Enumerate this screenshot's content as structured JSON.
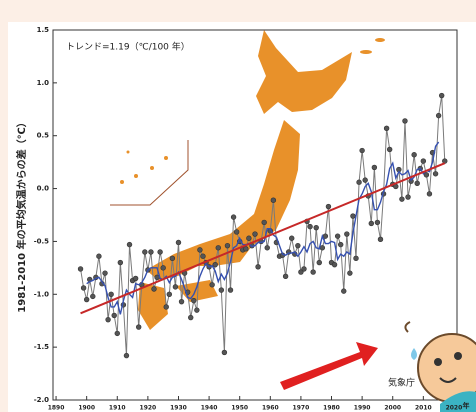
{
  "chart_data": {
    "type": "line",
    "y_label": "1981-2010 年の平均気温からの差（℃）",
    "annotation": "トレンド=1.19（℃/100 年）",
    "source": "気象庁",
    "x_unit": "年",
    "x": [
      1898,
      1899,
      1900,
      1901,
      1902,
      1903,
      1904,
      1905,
      1906,
      1907,
      1908,
      1909,
      1910,
      1911,
      1912,
      1913,
      1914,
      1915,
      1916,
      1917,
      1918,
      1919,
      1920,
      1921,
      1922,
      1923,
      1924,
      1925,
      1926,
      1927,
      1928,
      1929,
      1930,
      1931,
      1932,
      1933,
      1934,
      1935,
      1936,
      1937,
      1938,
      1939,
      1940,
      1941,
      1942,
      1943,
      1944,
      1945,
      1946,
      1947,
      1948,
      1949,
      1950,
      1951,
      1952,
      1953,
      1954,
      1955,
      1956,
      1957,
      1958,
      1959,
      1960,
      1961,
      1962,
      1963,
      1964,
      1965,
      1966,
      1967,
      1968,
      1969,
      1970,
      1971,
      1972,
      1973,
      1974,
      1975,
      1976,
      1977,
      1978,
      1979,
      1980,
      1981,
      1982,
      1983,
      1984,
      1985,
      1986,
      1987,
      1988,
      1989,
      1990,
      1991,
      1992,
      1993,
      1994,
      1995,
      1996,
      1997,
      1998,
      1999,
      2000,
      2001,
      2002,
      2003,
      2004,
      2005,
      2006,
      2007,
      2008,
      2009,
      2010,
      2011,
      2012,
      2013,
      2014,
      2015,
      2016,
      2017
    ],
    "series": [
      {
        "color": "#7a7a7a",
        "markers": true,
        "values": [
          -0.76,
          -0.94,
          -1.05,
          -0.86,
          -1.02,
          -0.84,
          -0.64,
          -0.9,
          -0.8,
          -1.24,
          -1.0,
          -1.2,
          -1.37,
          -0.7,
          -1.1,
          -1.58,
          -0.53,
          -0.87,
          -0.85,
          -1.31,
          -0.91,
          -0.6,
          -0.77,
          -0.6,
          -0.95,
          -0.84,
          -0.6,
          -0.75,
          -1.12,
          -1.0,
          -0.66,
          -0.93,
          -0.51,
          -1.07,
          -0.8,
          -0.98,
          -1.22,
          -1.06,
          -1.15,
          -0.58,
          -0.64,
          -0.7,
          -0.74,
          -0.91,
          -0.72,
          -0.56,
          -0.96,
          -1.55,
          -0.54,
          -0.96,
          -0.27,
          -0.41,
          -0.5,
          -0.58,
          -0.57,
          -0.47,
          -0.54,
          -0.43,
          -0.74,
          -0.5,
          -0.32,
          -0.56,
          -0.4,
          -0.11,
          -0.51,
          -0.64,
          -0.63,
          -0.83,
          -0.6,
          -0.47,
          -0.62,
          -0.54,
          -0.79,
          -0.76,
          -0.31,
          -0.36,
          -0.79,
          -0.37,
          -0.7,
          -0.56,
          -0.45,
          -0.17,
          -0.7,
          -0.72,
          -0.45,
          -0.53,
          -0.97,
          -0.43,
          -0.8,
          -0.26,
          -0.66,
          0.06,
          0.36,
          0.08,
          -0.07,
          -0.33,
          0.2,
          -0.32,
          -0.48,
          -0.05,
          0.57,
          0.37,
          0.04,
          0.02,
          0.18,
          -0.1,
          0.64,
          -0.08,
          0.07,
          0.32,
          0.05,
          0.19,
          0.26,
          0.13,
          -0.05,
          0.34,
          0.14,
          0.69,
          0.88,
          0.26
        ]
      },
      {
        "color": "#3550b0",
        "markers": false,
        "values": [
          null,
          null,
          -0.9,
          -0.88,
          -0.87,
          -0.85,
          -0.84,
          -0.88,
          -0.92,
          -1.03,
          -1.12,
          -1.12,
          -1.07,
          -1.19,
          -1.06,
          -0.96,
          -1.0,
          -1.03,
          -0.9,
          -0.91,
          -0.89,
          -0.84,
          -0.77,
          -0.75,
          -0.75,
          -0.75,
          -0.85,
          -0.86,
          -0.83,
          -0.89,
          -0.84,
          -0.83,
          -0.79,
          -0.86,
          -0.94,
          -1.03,
          -1.04,
          -1.0,
          -0.93,
          -0.83,
          -0.76,
          -0.71,
          -0.74,
          -0.73,
          -0.78,
          -0.88,
          -0.81,
          -0.86,
          -0.8,
          -0.69,
          -0.56,
          -0.54,
          -0.47,
          -0.53,
          -0.53,
          -0.52,
          -0.55,
          -0.54,
          -0.51,
          -0.51,
          -0.5,
          -0.38,
          -0.38,
          -0.44,
          -0.46,
          -0.54,
          -0.62,
          -0.63,
          -0.61,
          -0.61,
          -0.6,
          -0.64,
          -0.6,
          -0.55,
          -0.6,
          -0.52,
          -0.5,
          -0.56,
          -0.57,
          -0.45,
          -0.52,
          -0.52,
          -0.5,
          -0.51,
          -0.67,
          -0.62,
          -0.64,
          -0.6,
          -0.62,
          -0.42,
          -0.26,
          -0.1,
          -0.05,
          0.02,
          0.05,
          -0.03,
          -0.2,
          -0.2,
          -0.13,
          -0.03,
          0.04,
          0.19,
          0.24,
          0.1,
          0.16,
          0.13,
          0.14,
          0.17,
          0.08,
          0.11,
          0.18,
          0.19,
          0.14,
          0.17,
          0.16,
          0.25,
          0.4,
          0.44,
          null,
          null
        ]
      }
    ],
    "trend": {
      "color": "#c62828",
      "x": [
        1898,
        2017
      ],
      "values": [
        -1.18,
        0.24
      ]
    },
    "xlim": [
      1889,
      2021
    ],
    "xticks": [
      1890,
      1900,
      1910,
      1920,
      1930,
      1940,
      1950,
      1960,
      1970,
      1980,
      1990,
      2000,
      2010,
      2020
    ],
    "ylim": [
      -2,
      1.5
    ],
    "yticks": [
      1.5,
      {
        "value": 1,
        "label": "1.0"
      },
      0.5,
      {
        "value": 0,
        "label": "0.0"
      },
      -0.5,
      {
        "value": -1,
        "label": "-1.0"
      },
      -1.5,
      {
        "value": -2,
        "label": "-2.0"
      }
    ]
  }
}
